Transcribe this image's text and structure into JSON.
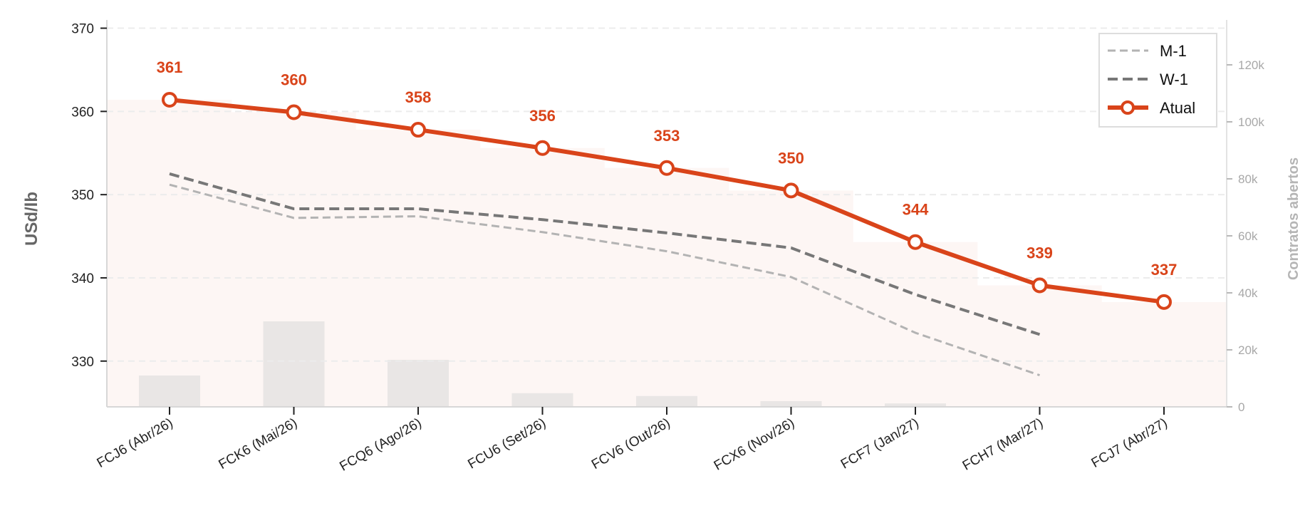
{
  "chart_data": {
    "type": "line",
    "categories": [
      "FCJ6 (Abr/26)",
      "FCK6 (Mai/26)",
      "FCQ6 (Ago/26)",
      "FCU6 (Set/26)",
      "FCV6 (Out/26)",
      "FCX6 (Nov/26)",
      "FCF7 (Jan/27)",
      "FCH7 (Mar/27)",
      "FCJ7 (Abr/27)"
    ],
    "series": [
      {
        "name": "M-1",
        "values": [
          351.2,
          347.2,
          347.4,
          345.5,
          343.2,
          340.1,
          333.4,
          328.3,
          null
        ],
        "color": "#b3b3b3",
        "style": "dashed"
      },
      {
        "name": "W-1",
        "values": [
          352.5,
          348.3,
          348.3,
          347.0,
          345.4,
          343.6,
          338.0,
          333.2,
          null
        ],
        "color": "#777777",
        "style": "dashed"
      },
      {
        "name": "Atual",
        "values": [
          361.4,
          359.9,
          357.8,
          355.6,
          353.2,
          350.5,
          344.3,
          339.1,
          337.1
        ],
        "color": "#d9441a",
        "style": "solid-markers"
      }
    ],
    "data_labels": [
      "361",
      "360",
      "358",
      "356",
      "353",
      "350",
      "344",
      "339",
      "337"
    ],
    "bars": {
      "name": "Contratos abertos",
      "values": [
        11000,
        30000,
        16500,
        4800,
        3800,
        2000,
        1200,
        0,
        0
      ],
      "color": "#e9e6e5"
    },
    "ylabel": "USd/lb",
    "y2label": "Contratos abertos",
    "ylim": [
      324.5,
      370
    ],
    "y2lim": [
      0,
      134000
    ],
    "yticks": [
      330,
      340,
      350,
      360,
      370
    ],
    "y2ticks": [
      0,
      20000,
      40000,
      60000,
      80000,
      100000,
      120000
    ],
    "y2tick_labels": [
      "0",
      "20k",
      "40k",
      "60k",
      "80k",
      "100k",
      "120k"
    ],
    "grid": "horizontal-dashed",
    "legend_position": "top-right",
    "colors": {
      "accent": "#d9441a",
      "area_fill": "#fdf6f4"
    }
  }
}
